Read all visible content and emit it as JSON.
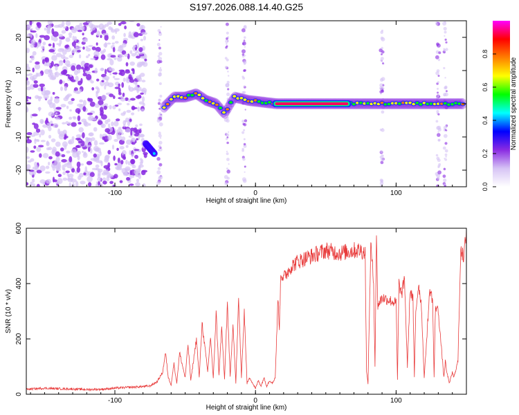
{
  "title": "S197.2026.088.14.40.G25",
  "chart_data": [
    {
      "type": "heatmap",
      "xlabel": "Height of straight line (km)",
      "ylabel": "Frequency (Hz)",
      "xlim": [
        -163,
        150
      ],
      "ylim": [
        -25,
        25
      ],
      "xticks": [
        -100,
        0,
        100
      ],
      "yticks": [
        -20,
        -10,
        0,
        10,
        20
      ],
      "colorbar": {
        "label": "Normalized spectral amplitude",
        "range": [
          0,
          1
        ],
        "ticks": [
          "0.0",
          "0.2",
          "0.4",
          "0.6",
          "0.8"
        ],
        "colors": [
          "#ffffff",
          "#d6c3f5",
          "#8a2be2",
          "#0000ff",
          "#00ffff",
          "#00ff00",
          "#ffff00",
          "#ff7f00",
          "#ff0000",
          "#ff00ff"
        ]
      },
      "features": [
        {
          "desc": "noise region",
          "x_range": [
            -163,
            -78
          ],
          "f_range": [
            -25,
            25
          ],
          "amplitude": 0.05
        },
        {
          "desc": "descending streak",
          "x": [
            -78,
            -72
          ],
          "f": [
            -12,
            -15
          ],
          "amplitude": 0.25
        },
        {
          "desc": "track",
          "x": [
            -65,
            -58,
            -50,
            -42,
            -35,
            -28,
            -22,
            -15,
            -5,
            5,
            15,
            60,
            75,
            100,
            130,
            148
          ],
          "f": [
            -1,
            2,
            2,
            3,
            1,
            0,
            -3,
            2,
            1,
            0.5,
            0,
            0,
            0,
            0,
            0,
            0
          ],
          "amplitude": 0.3
        },
        {
          "desc": "strong carrier",
          "x_range": [
            12,
            68
          ],
          "f": 0,
          "amplitude": 0.95
        }
      ]
    },
    {
      "type": "line",
      "xlabel": "Height of straight line (km)",
      "ylabel": "SNR (10 * v/v)",
      "xlim": [
        -163,
        150
      ],
      "ylim": [
        0,
        600
      ],
      "xticks": [
        -100,
        0,
        100
      ],
      "yticks": [
        0,
        200,
        400,
        600
      ],
      "series": [
        {
          "name": "SNR",
          "color": "#e83a3a",
          "x": [
            -163,
            -150,
            -140,
            -130,
            -120,
            -110,
            -100,
            -90,
            -80,
            -75,
            -70,
            -66,
            -64,
            -62,
            -60,
            -58,
            -56,
            -54,
            -50,
            -48,
            -46,
            -42,
            -40,
            -38,
            -34,
            -32,
            -30,
            -28,
            -26,
            -24,
            -22,
            -20,
            -18,
            -16,
            -14,
            -12,
            -10,
            -8,
            -6,
            -4,
            -2,
            0,
            2,
            4,
            6,
            8,
            10,
            12,
            14,
            15,
            16,
            17,
            18,
            20,
            25,
            30,
            40,
            50,
            60,
            70,
            75,
            78,
            79,
            80,
            82,
            84,
            85,
            86,
            87,
            88,
            90,
            95,
            100,
            101,
            102,
            104,
            106,
            108,
            110,
            112,
            113,
            114,
            116,
            118,
            120,
            124,
            126,
            127,
            128,
            130,
            134,
            135,
            136,
            138,
            140,
            141,
            142,
            144,
            146,
            148,
            150
          ],
          "y": [
            18,
            22,
            20,
            19,
            17,
            18,
            22,
            25,
            28,
            30,
            45,
            80,
            150,
            60,
            35,
            110,
            40,
            150,
            60,
            180,
            50,
            200,
            60,
            260,
            80,
            210,
            55,
            300,
            70,
            240,
            50,
            330,
            60,
            260,
            40,
            340,
            60,
            300,
            40,
            60,
            40,
            20,
            50,
            30,
            60,
            30,
            50,
            40,
            60,
            200,
            350,
            240,
            440,
            420,
            460,
            480,
            500,
            520,
            510,
            520,
            520,
            510,
            80,
            40,
            540,
            400,
            100,
            560,
            320,
            330,
            350,
            340,
            330,
            50,
            400,
            360,
            420,
            100,
            380,
            340,
            60,
            300,
            400,
            320,
            60,
            380,
            340,
            60,
            320,
            300,
            60,
            120,
            80,
            40,
            80,
            60,
            80,
            120,
            540,
            480,
            600
          ]
        }
      ]
    }
  ]
}
